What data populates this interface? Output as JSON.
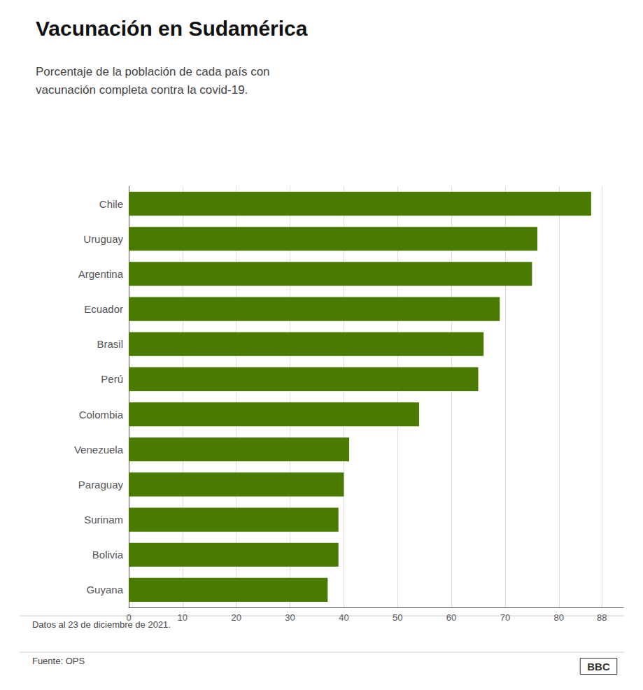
{
  "chart_data": {
    "type": "bar",
    "orientation": "horizontal",
    "title": "Vacunación en Sudamérica",
    "subtitle": "Porcentaje de la población de cada país con\nvacunación completa contra la covid-19.",
    "categories": [
      "Chile",
      "Uruguay",
      "Argentina",
      "Ecuador",
      "Brasil",
      "Perú",
      "Colombia",
      "Venezuela",
      "Paraguay",
      "Surinam",
      "Bolivia",
      "Guyana"
    ],
    "values": [
      86,
      76,
      75,
      69,
      66,
      65,
      54,
      41,
      40,
      39,
      39,
      37
    ],
    "color": "#4a7a00",
    "xlim": [
      0,
      92
    ],
    "xticks": [
      0,
      10,
      20,
      30,
      40,
      50,
      60,
      70,
      80,
      88
    ],
    "grid": true,
    "annotations": [
      "Datos al 23 de diciembre de 2021.",
      "Fuente: OPS",
      "BBC"
    ]
  }
}
